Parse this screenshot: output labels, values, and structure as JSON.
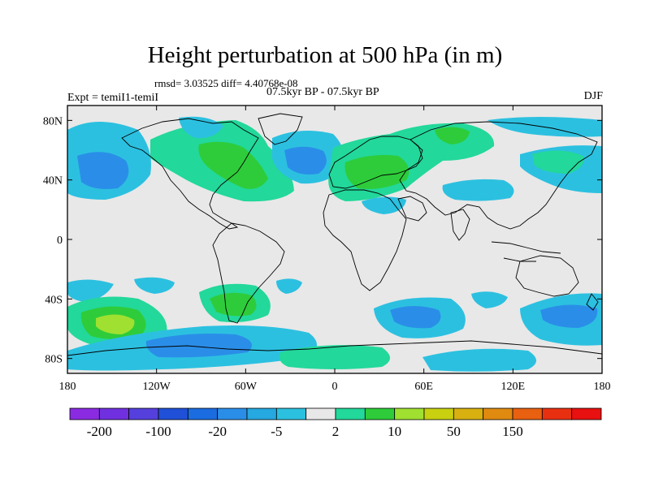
{
  "title": "Height perturbation at 500 hPa (in m)",
  "stats": "rmsd= 3.03525 diff= 4.40768e-08",
  "period": "07.5kyr BP - 07.5kyr BP",
  "experiment": "Expt = temiI1-temiI",
  "season": "DJF",
  "map": {
    "lon_ticks": [
      "180",
      "120W",
      "60W",
      "0",
      "60E",
      "120E",
      "180"
    ],
    "lat_ticks": [
      "80N",
      "40N",
      "0",
      "40S",
      "80S"
    ],
    "lon_range": [
      -180,
      180
    ],
    "lat_range": [
      -90,
      90
    ],
    "background_color": "#e8e8e8",
    "coast_color": "#000000"
  },
  "colorbar": {
    "colors": [
      "#8a2be2",
      "#7030e0",
      "#5540dd",
      "#2050d8",
      "#1a6ce0",
      "#2a8ee8",
      "#26a8e0",
      "#2cc0e0",
      "#e8e8e8",
      "#22d89a",
      "#2ecc3a",
      "#a0e030",
      "#c8d010",
      "#d8b010",
      "#e08a10",
      "#e86010",
      "#e83010",
      "#e81010"
    ],
    "labels": [
      "-200",
      "-100",
      "-20",
      "-5",
      "2",
      "10",
      "50",
      "150"
    ]
  }
}
